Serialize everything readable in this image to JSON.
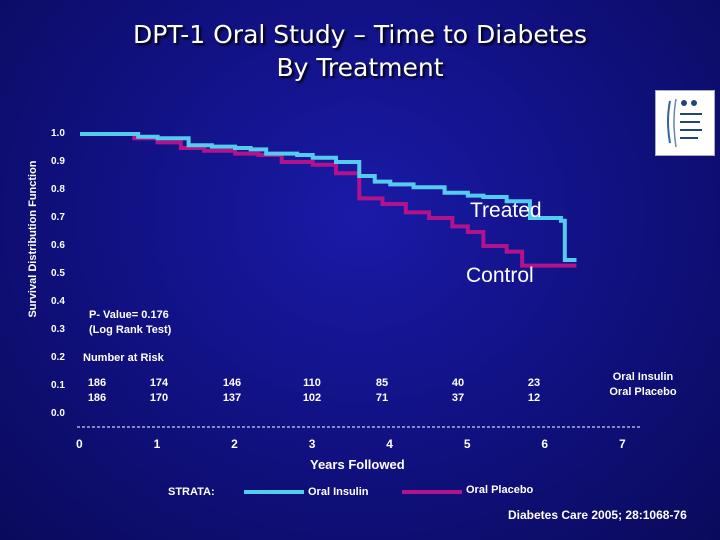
{
  "title": {
    "line1": "DPT-1 Oral Study – Time to Diabetes",
    "line2": "By Treatment"
  },
  "colors": {
    "background": "#10107e",
    "treated_line": "#55ccee",
    "control_line": "#b0138c"
  },
  "chart_data": {
    "type": "line",
    "title": "DPT-1 Oral Study – Time to Diabetes By Treatment",
    "xlabel": "Years Followed",
    "ylabel": "Survival Distribution Function",
    "xlim": [
      0,
      7
    ],
    "ylim": [
      0.0,
      1.0
    ],
    "x_ticks": [
      "0",
      "1",
      "2",
      "3",
      "4",
      "5",
      "6",
      "7"
    ],
    "y_ticks": [
      "0.0",
      "0.1",
      "0.2",
      "0.3",
      "0.4",
      "0.5",
      "0.6",
      "0.7",
      "0.8",
      "0.9",
      "1.0"
    ],
    "series": [
      {
        "name": "Oral Insulin",
        "label": "Treated",
        "color": "#55ccee",
        "points": [
          [
            0,
            1.0
          ],
          [
            0.55,
            1.0
          ],
          [
            0.75,
            0.99
          ],
          [
            1.0,
            0.985
          ],
          [
            1.4,
            0.96
          ],
          [
            1.7,
            0.955
          ],
          [
            2.0,
            0.95
          ],
          [
            2.2,
            0.945
          ],
          [
            2.4,
            0.93
          ],
          [
            2.8,
            0.925
          ],
          [
            3.0,
            0.915
          ],
          [
            3.3,
            0.9
          ],
          [
            3.6,
            0.85
          ],
          [
            3.8,
            0.83
          ],
          [
            4.0,
            0.82
          ],
          [
            4.3,
            0.81
          ],
          [
            4.7,
            0.79
          ],
          [
            5.0,
            0.78
          ],
          [
            5.2,
            0.775
          ],
          [
            5.5,
            0.76
          ],
          [
            5.8,
            0.7
          ],
          [
            6.1,
            0.7
          ],
          [
            6.2,
            0.69
          ],
          [
            6.25,
            0.55
          ],
          [
            6.4,
            0.55
          ]
        ]
      },
      {
        "name": "Oral Placebo",
        "label": "Control",
        "color": "#b0138c",
        "points": [
          [
            0,
            1.0
          ],
          [
            0.55,
            1.0
          ],
          [
            0.7,
            0.985
          ],
          [
            1.0,
            0.97
          ],
          [
            1.3,
            0.95
          ],
          [
            1.6,
            0.94
          ],
          [
            2.0,
            0.93
          ],
          [
            2.3,
            0.925
          ],
          [
            2.6,
            0.9
          ],
          [
            3.0,
            0.89
          ],
          [
            3.3,
            0.86
          ],
          [
            3.6,
            0.77
          ],
          [
            3.9,
            0.75
          ],
          [
            4.2,
            0.72
          ],
          [
            4.5,
            0.7
          ],
          [
            4.8,
            0.67
          ],
          [
            5.0,
            0.65
          ],
          [
            5.2,
            0.6
          ],
          [
            5.5,
            0.58
          ],
          [
            5.7,
            0.53
          ],
          [
            6.0,
            0.53
          ],
          [
            6.2,
            0.53
          ],
          [
            6.4,
            0.53
          ]
        ]
      }
    ],
    "annotations": {
      "pvalue_line1": "P- Value= 0.176",
      "pvalue_line2": "(Log Rank Test)"
    }
  },
  "risk_table": {
    "title": "Number at Risk",
    "insulin": [
      "186",
      "174",
      "146",
      "110",
      "85",
      "40",
      "23"
    ],
    "placebo": [
      "186",
      "170",
      "137",
      "102",
      "71",
      "37",
      "12"
    ],
    "legend_insulin": "Oral Insulin",
    "legend_placebo": "Oral Placebo"
  },
  "legend": {
    "strata_label": "STRATA:",
    "insulin_label": "Oral Insulin",
    "placebo_label": "Oral Placebo"
  },
  "source": "Diabetes Care 2005; 28:1068-76"
}
